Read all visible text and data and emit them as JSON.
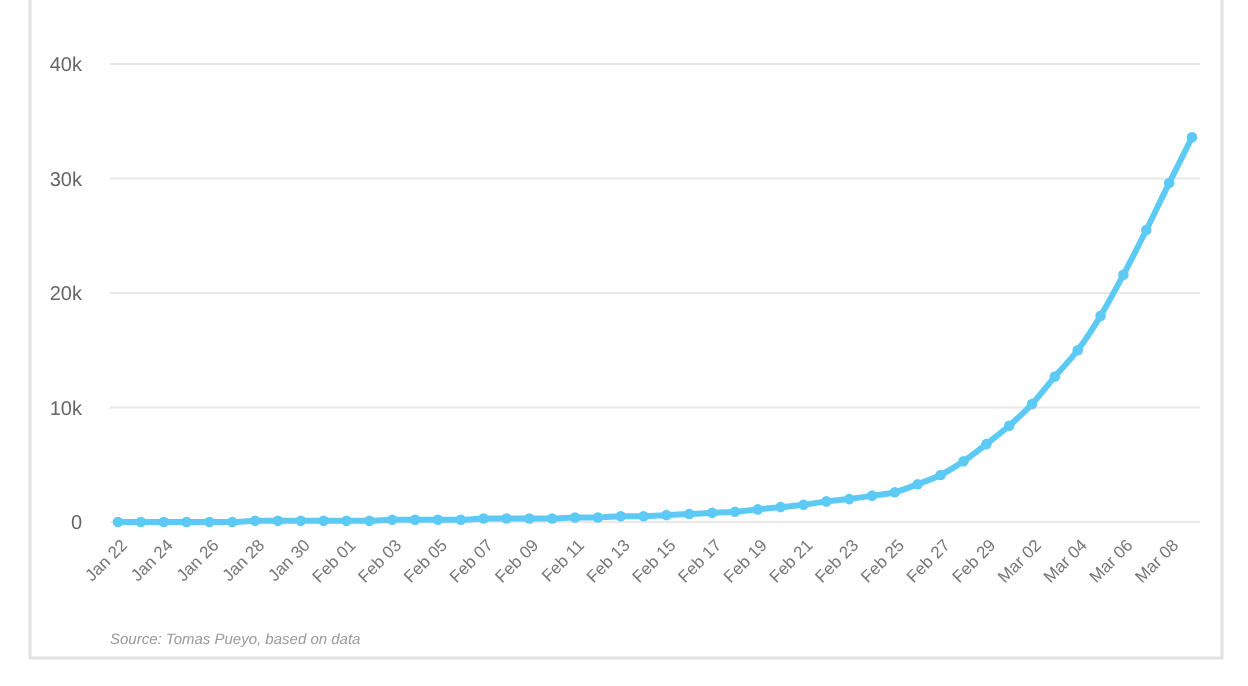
{
  "chart_data": {
    "type": "line",
    "categories": [
      "Jan 22",
      null,
      "Jan 24",
      null,
      "Jan 26",
      null,
      "Jan 28",
      null,
      "Jan 30",
      null,
      "Feb 01",
      null,
      "Feb 03",
      null,
      "Feb 05",
      null,
      "Feb 07",
      null,
      "Feb 09",
      null,
      "Feb 11",
      null,
      "Feb 13",
      null,
      "Feb 15",
      null,
      "Feb 17",
      null,
      "Feb 19",
      null,
      "Feb 21",
      null,
      "Feb 23",
      null,
      "Feb 25",
      null,
      "Feb 27",
      null,
      "Feb 29",
      null,
      "Mar 02",
      null,
      "Mar 04",
      null,
      "Mar 06",
      null,
      "Mar 08",
      null
    ],
    "series": [
      {
        "color": "#5dcaf5",
        "values": [
          0,
          0,
          0,
          0,
          0,
          0,
          100,
          100,
          100,
          100,
          100,
          100,
          200,
          200,
          200,
          200,
          300,
          300,
          300,
          300,
          400,
          400,
          500,
          500,
          600,
          700,
          800,
          900,
          1100,
          1300,
          1500,
          1800,
          2000,
          2300,
          2600,
          3300,
          4100,
          5300,
          6800,
          8400,
          10300,
          12700,
          15000,
          18000,
          21600,
          25500,
          29600,
          33600
        ]
      }
    ],
    "ylim": [
      0,
      40000
    ],
    "yticks": [
      {
        "value": 0,
        "label": "0"
      },
      {
        "value": 10000,
        "label": "10k"
      },
      {
        "value": 20000,
        "label": "20k"
      },
      {
        "value": 30000,
        "label": "30k"
      },
      {
        "value": 40000,
        "label": "40k"
      }
    ],
    "grid": "y",
    "marker": "circle",
    "line_style": "solid",
    "annotations": [
      "Source: Tomas Pueyo, based on data"
    ]
  }
}
